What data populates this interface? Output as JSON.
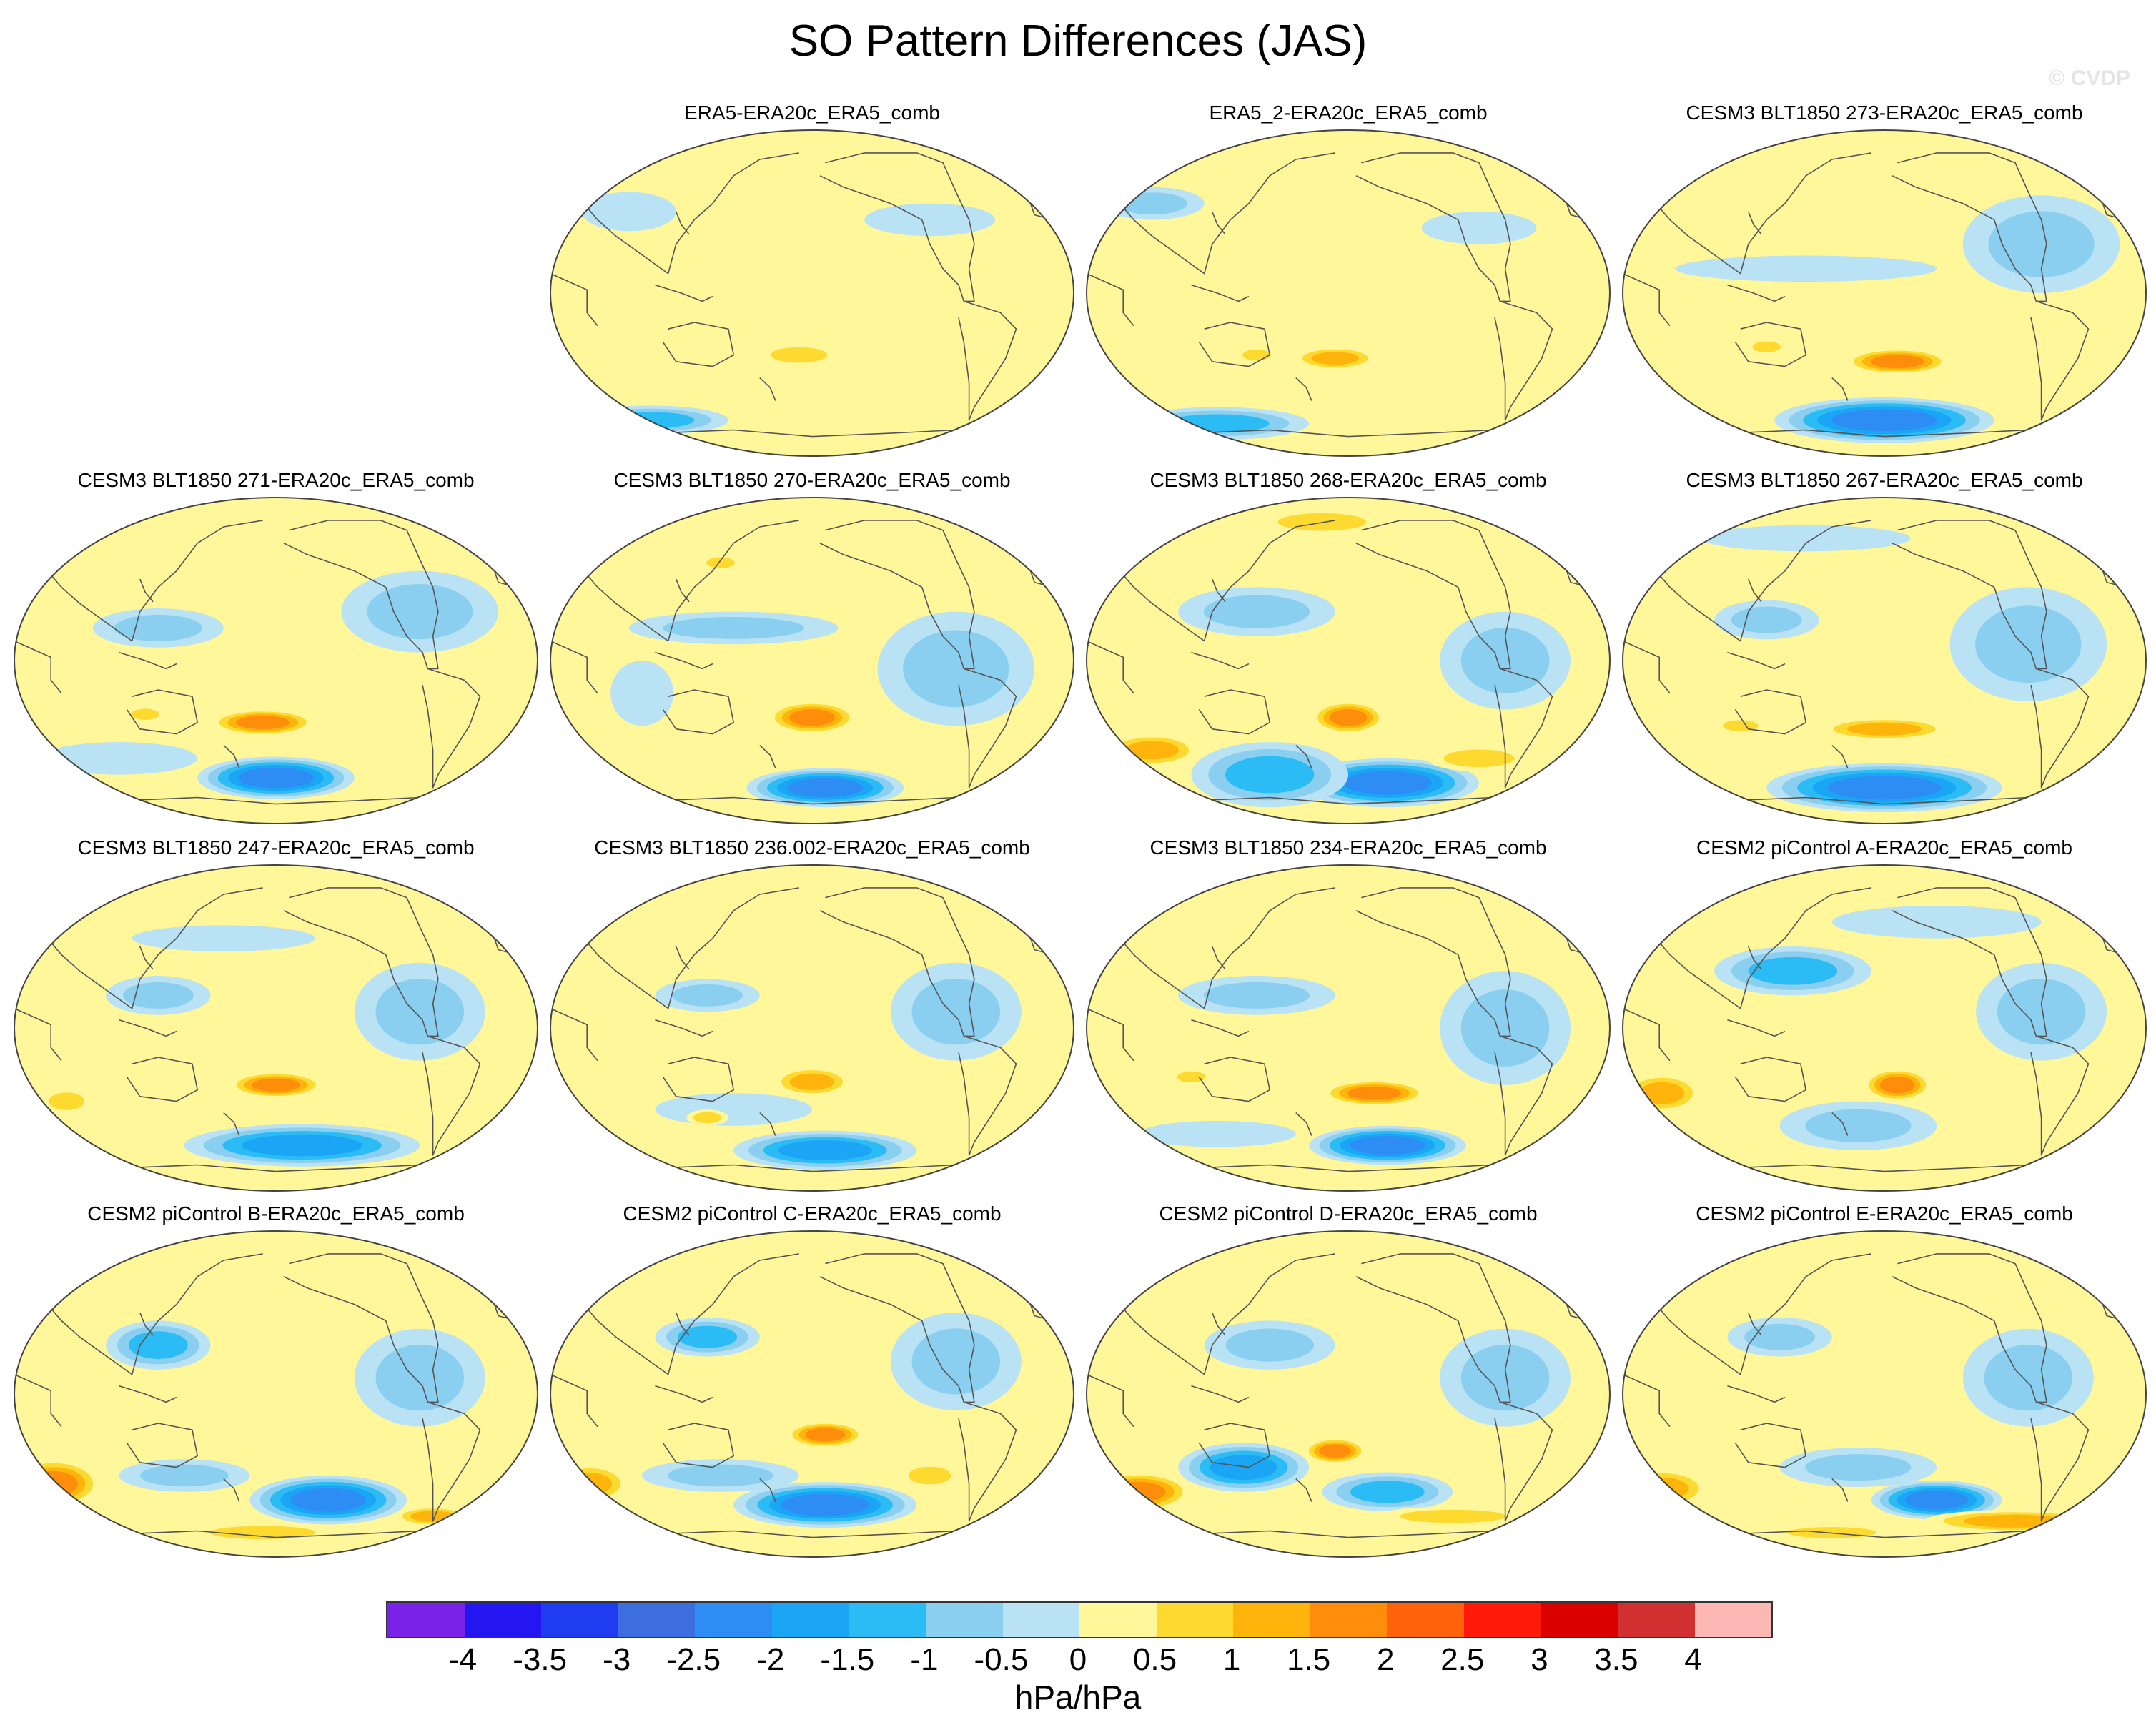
{
  "chart_data": {
    "type": "heatmap",
    "title": "SO Pattern Differences (JAS)",
    "projection": "Robinson, global, Pacific-centred",
    "watermark": "© CVDP",
    "colorbar": {
      "units": "hPa/hPa",
      "ticks": [
        "-4",
        "-3.5",
        "-3",
        "-2.5",
        "-2",
        "-1.5",
        "-1",
        "-0.5",
        "0",
        "0.5",
        "1",
        "1.5",
        "2",
        "2.5",
        "3",
        "3.5",
        "4"
      ],
      "colors": [
        "#7b22e8",
        "#2416f0",
        "#1f3cf0",
        "#3c6ee0",
        "#2e8cf5",
        "#1aa5f5",
        "#2bbcf5",
        "#8acfef",
        "#b9e2f4",
        "#fff79a",
        "#fed930",
        "#feb40b",
        "#fe8d0c",
        "#fe620a",
        "#ff1a0a",
        "#da0000",
        "#d0302f",
        "#fdb7b5"
      ]
    },
    "panels": [
      {
        "title": "ERA5-ERA20c_ERA5_comb",
        "row": 0,
        "col": 1,
        "blue": [
          [
            -0.62,
            -0.78,
            0.3,
            0.09,
            -1.0
          ],
          [
            -0.7,
            0.5,
            0.18,
            0.12,
            -0.4
          ],
          [
            0.45,
            0.45,
            0.25,
            0.1,
            -0.3
          ]
        ],
        "warm": [
          [
            -0.05,
            -0.38,
            0.16,
            0.07,
            0.9
          ]
        ]
      },
      {
        "title": "ERA5_2-ERA20c_ERA5_comb",
        "row": 0,
        "col": 2,
        "blue": [
          [
            -0.5,
            -0.8,
            0.35,
            0.1,
            -1.0
          ],
          [
            -0.75,
            0.55,
            0.2,
            0.1,
            -0.5
          ],
          [
            0.5,
            0.4,
            0.22,
            0.1,
            -0.3
          ]
        ],
        "warm": [
          [
            -0.05,
            -0.4,
            0.16,
            0.07,
            1.2
          ],
          [
            -0.35,
            -0.38,
            0.08,
            0.05,
            0.8
          ]
        ]
      },
      {
        "title": "CESM3 BLT1850 273-ERA20c_ERA5_comb",
        "row": 0,
        "col": 3,
        "blue": [
          [
            0.0,
            -0.78,
            0.42,
            0.14,
            -2.0
          ],
          [
            0.6,
            0.3,
            0.3,
            0.3,
            -0.5
          ],
          [
            -0.3,
            0.15,
            0.5,
            0.08,
            -0.4
          ]
        ],
        "warm": [
          [
            0.05,
            -0.42,
            0.2,
            0.08,
            1.6
          ],
          [
            -0.45,
            -0.33,
            0.08,
            0.05,
            0.9
          ]
        ]
      },
      {
        "title": "CESM3 BLT1850 271-ERA20c_ERA5_comb",
        "row": 1,
        "col": 0,
        "blue": [
          [
            0.0,
            -0.72,
            0.3,
            0.13,
            -2.0
          ],
          [
            -0.45,
            0.2,
            0.25,
            0.12,
            -0.8
          ],
          [
            0.55,
            0.3,
            0.3,
            0.25,
            -0.5
          ],
          [
            -0.6,
            -0.6,
            0.3,
            0.1,
            -0.4
          ]
        ],
        "warm": [
          [
            -0.05,
            -0.38,
            0.2,
            0.08,
            1.5
          ],
          [
            -0.5,
            -0.33,
            0.08,
            0.05,
            0.8
          ]
        ]
      },
      {
        "title": "CESM3 BLT1850 270-ERA20c_ERA5_comb",
        "row": 1,
        "col": 1,
        "blue": [
          [
            0.05,
            -0.78,
            0.3,
            0.12,
            -2.0
          ],
          [
            -0.3,
            0.2,
            0.4,
            0.1,
            -0.5
          ],
          [
            0.55,
            -0.05,
            0.3,
            0.35,
            -0.5
          ],
          [
            -0.65,
            -0.2,
            0.12,
            0.2,
            -0.4
          ]
        ],
        "warm": [
          [
            0.0,
            -0.35,
            0.17,
            0.1,
            1.5
          ],
          [
            -0.35,
            0.6,
            0.08,
            0.05,
            0.6
          ]
        ]
      },
      {
        "title": "CESM3 BLT1850 268-ERA20c_ERA5_comb",
        "row": 1,
        "col": 2,
        "blue": [
          [
            0.15,
            -0.75,
            0.35,
            0.15,
            -2.0
          ],
          [
            -0.3,
            -0.7,
            0.3,
            0.2,
            -1.1
          ],
          [
            -0.35,
            0.3,
            0.3,
            0.15,
            -0.8
          ],
          [
            0.6,
            0.0,
            0.25,
            0.3,
            -0.5
          ]
        ],
        "warm": [
          [
            0.0,
            -0.35,
            0.14,
            0.1,
            1.5
          ],
          [
            -0.75,
            -0.55,
            0.18,
            0.1,
            1.1
          ],
          [
            0.5,
            -0.6,
            0.2,
            0.08,
            0.9
          ],
          [
            -0.1,
            0.85,
            0.25,
            0.08,
            0.6
          ]
        ]
      },
      {
        "title": "CESM3 BLT1850 267-ERA20c_ERA5_comb",
        "row": 1,
        "col": 3,
        "blue": [
          [
            0.0,
            -0.78,
            0.45,
            0.15,
            -2.0
          ],
          [
            -0.45,
            0.25,
            0.2,
            0.12,
            -0.7
          ],
          [
            0.55,
            0.1,
            0.3,
            0.35,
            -0.5
          ],
          [
            -0.3,
            0.75,
            0.4,
            0.08,
            -0.4
          ]
        ],
        "warm": [
          [
            0.0,
            -0.42,
            0.25,
            0.07,
            1.1
          ],
          [
            -0.55,
            -0.4,
            0.1,
            0.05,
            0.8
          ]
        ]
      },
      {
        "title": "CESM3 BLT1850 247-ERA20c_ERA5_comb",
        "row": 2,
        "col": 0,
        "blue": [
          [
            0.1,
            -0.72,
            0.45,
            0.13,
            -1.6
          ],
          [
            -0.45,
            0.2,
            0.2,
            0.12,
            -0.8
          ],
          [
            0.55,
            0.1,
            0.25,
            0.3,
            -0.5
          ],
          [
            -0.2,
            0.55,
            0.35,
            0.08,
            -0.4
          ]
        ],
        "warm": [
          [
            0.0,
            -0.35,
            0.18,
            0.08,
            1.5
          ],
          [
            -0.8,
            -0.45,
            0.1,
            0.08,
            0.8
          ]
        ]
      },
      {
        "title": "CESM3 BLT1850 236.002-ERA20c_ERA5_comb",
        "row": 2,
        "col": 1,
        "blue": [
          [
            0.05,
            -0.75,
            0.35,
            0.12,
            -1.5
          ],
          [
            -0.4,
            0.2,
            0.2,
            0.1,
            -0.8
          ],
          [
            0.55,
            0.1,
            0.25,
            0.3,
            -0.5
          ],
          [
            -0.3,
            -0.5,
            0.3,
            0.1,
            -0.4
          ]
        ],
        "warm": [
          [
            0.0,
            -0.33,
            0.15,
            0.09,
            1.1
          ],
          [
            -0.4,
            -0.55,
            0.08,
            0.05,
            0.7
          ]
        ]
      },
      {
        "title": "CESM3 BLT1850 234-ERA20c_ERA5_comb",
        "row": 2,
        "col": 2,
        "blue": [
          [
            0.15,
            -0.72,
            0.3,
            0.12,
            -2.0
          ],
          [
            -0.35,
            0.2,
            0.3,
            0.12,
            -0.8
          ],
          [
            0.6,
            0.0,
            0.25,
            0.35,
            -0.5
          ],
          [
            -0.5,
            -0.65,
            0.3,
            0.08,
            -0.4
          ]
        ],
        "warm": [
          [
            0.1,
            -0.4,
            0.2,
            0.08,
            1.5
          ],
          [
            -0.6,
            -0.3,
            0.08,
            0.05,
            0.6
          ]
        ]
      },
      {
        "title": "CESM2 piControl A-ERA20c_ERA5_comb",
        "row": 2,
        "col": 3,
        "blue": [
          [
            -0.35,
            0.35,
            0.3,
            0.15,
            -1.0
          ],
          [
            -0.1,
            -0.6,
            0.3,
            0.15,
            -0.8
          ],
          [
            0.6,
            0.1,
            0.25,
            0.3,
            -0.5
          ],
          [
            0.2,
            0.65,
            0.4,
            0.1,
            -0.4
          ]
        ],
        "warm": [
          [
            0.05,
            -0.35,
            0.13,
            0.1,
            1.6
          ],
          [
            -0.85,
            -0.4,
            0.15,
            0.12,
            1.1
          ]
        ]
      },
      {
        "title": "CESM2 piControl B-ERA20c_ERA5_comb",
        "row": 3,
        "col": 0,
        "blue": [
          [
            0.2,
            -0.65,
            0.3,
            0.15,
            -2.0
          ],
          [
            -0.45,
            0.3,
            0.2,
            0.15,
            -1.0
          ],
          [
            0.55,
            0.1,
            0.25,
            0.3,
            -0.5
          ],
          [
            -0.35,
            -0.5,
            0.25,
            0.1,
            -0.5
          ]
        ],
        "warm": [
          [
            -0.85,
            -0.55,
            0.18,
            0.15,
            1.5
          ],
          [
            0.6,
            -0.75,
            0.15,
            0.06,
            1.0
          ],
          [
            -0.05,
            -0.85,
            0.3,
            0.06,
            0.7
          ]
        ]
      },
      {
        "title": "CESM2 piControl C-ERA20c_ERA5_comb",
        "row": 3,
        "col": 1,
        "blue": [
          [
            0.05,
            -0.68,
            0.35,
            0.14,
            -2.0
          ],
          [
            -0.4,
            0.35,
            0.2,
            0.12,
            -1.0
          ],
          [
            0.55,
            0.2,
            0.25,
            0.3,
            -0.5
          ],
          [
            -0.35,
            -0.5,
            0.3,
            0.1,
            -0.5
          ]
        ],
        "warm": [
          [
            0.05,
            -0.25,
            0.15,
            0.08,
            1.5
          ],
          [
            -0.85,
            -0.55,
            0.15,
            0.12,
            1.0
          ],
          [
            0.45,
            -0.5,
            0.12,
            0.08,
            0.8
          ]
        ]
      },
      {
        "title": "CESM2 piControl D-ERA20c_ERA5_comb",
        "row": 3,
        "col": 2,
        "blue": [
          [
            -0.4,
            -0.45,
            0.25,
            0.15,
            -1.6
          ],
          [
            0.15,
            -0.6,
            0.25,
            0.12,
            -1.0
          ],
          [
            -0.3,
            0.3,
            0.25,
            0.15,
            -0.8
          ],
          [
            0.6,
            0.1,
            0.25,
            0.3,
            -0.5
          ]
        ],
        "warm": [
          [
            -0.8,
            -0.6,
            0.2,
            0.12,
            1.5
          ],
          [
            -0.05,
            -0.35,
            0.12,
            0.08,
            1.5
          ],
          [
            0.4,
            -0.75,
            0.3,
            0.06,
            0.9
          ]
        ]
      },
      {
        "title": "CESM2 piControl E-ERA20c_ERA5_comb",
        "row": 3,
        "col": 3,
        "blue": [
          [
            0.2,
            -0.65,
            0.25,
            0.12,
            -2.0
          ],
          [
            -0.1,
            -0.45,
            0.3,
            0.12,
            -0.7
          ],
          [
            0.55,
            0.1,
            0.25,
            0.3,
            -0.5
          ],
          [
            -0.4,
            0.35,
            0.2,
            0.12,
            -0.5
          ]
        ],
        "warm": [
          [
            -0.85,
            -0.58,
            0.18,
            0.12,
            1.3
          ],
          [
            0.5,
            -0.78,
            0.35,
            0.07,
            1.0
          ],
          [
            -0.2,
            -0.85,
            0.25,
            0.05,
            0.8
          ]
        ]
      }
    ]
  }
}
